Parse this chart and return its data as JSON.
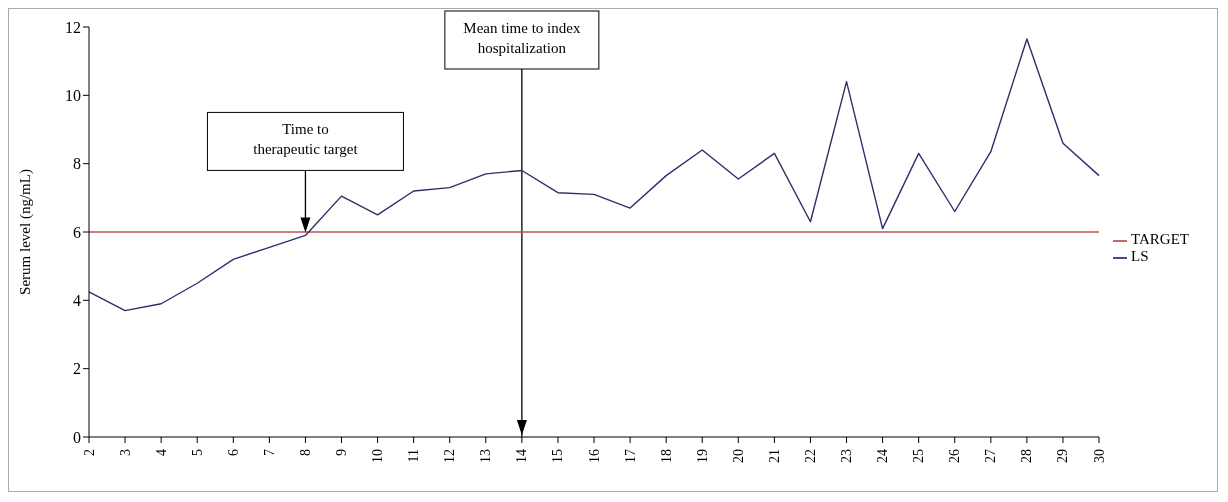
{
  "chart_data": {
    "type": "line",
    "ylabel": "Serum level (ng/mL)",
    "categories": [
      "2",
      "3",
      "4",
      "5",
      "6",
      "7",
      "8",
      "9",
      "10",
      "11",
      "12",
      "13",
      "14",
      "15",
      "16",
      "17",
      "18",
      "19",
      "20",
      "21",
      "22",
      "23",
      "24",
      "25",
      "26",
      "27",
      "28",
      "29",
      "30"
    ],
    "series": [
      {
        "name": "TARGET",
        "color": "#c0504d",
        "values": [
          6,
          6,
          6,
          6,
          6,
          6,
          6,
          6,
          6,
          6,
          6,
          6,
          6,
          6,
          6,
          6,
          6,
          6,
          6,
          6,
          6,
          6,
          6,
          6,
          6,
          6,
          6,
          6,
          6
        ]
      },
      {
        "name": "LS",
        "color": "#2e2e6b",
        "values": [
          4.25,
          3.7,
          3.9,
          4.5,
          5.2,
          5.55,
          5.9,
          7.05,
          6.5,
          7.2,
          7.3,
          7.7,
          7.8,
          7.15,
          7.1,
          6.7,
          7.65,
          8.4,
          7.55,
          8.3,
          6.3,
          10.4,
          6.1,
          8.3,
          6.6,
          8.35,
          11.65,
          8.6,
          7.65
        ]
      }
    ],
    "ylim": [
      0,
      12
    ],
    "yticks": [
      0,
      2,
      4,
      6,
      8,
      10,
      12
    ],
    "grid": false,
    "legend": "right",
    "marker": "none",
    "line_style": "solid",
    "ref_lines": [
      {
        "axis": "x",
        "value": "14",
        "label": "Mean time to index hospitalization",
        "color": "#000000"
      }
    ],
    "annotations": [
      "Time to therapeutic target"
    ]
  }
}
